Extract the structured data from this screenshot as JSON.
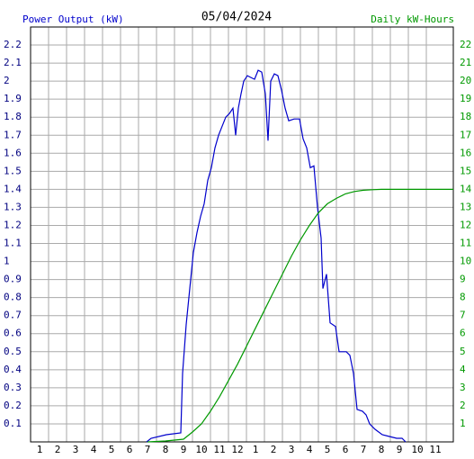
{
  "chart_data": {
    "type": "line",
    "title": "05/04/2024",
    "y_label": "Power Output (kW)",
    "y2_label": "Daily kW-Hours",
    "xlim": [
      0.5,
      24
    ],
    "ylim": [
      0,
      2.3
    ],
    "y2lim": [
      0,
      23
    ],
    "xticks": [
      {
        "value": 1,
        "label": "1"
      },
      {
        "value": 2,
        "label": "2"
      },
      {
        "value": 3,
        "label": "3"
      },
      {
        "value": 4,
        "label": "4"
      },
      {
        "value": 5,
        "label": "5"
      },
      {
        "value": 6,
        "label": "6"
      },
      {
        "value": 7,
        "label": "7"
      },
      {
        "value": 8,
        "label": "8"
      },
      {
        "value": 9,
        "label": "9"
      },
      {
        "value": 10,
        "label": "10"
      },
      {
        "value": 11,
        "label": "11"
      },
      12,
      {
        "value": 13,
        "label": "1"
      },
      {
        "value": 14,
        "label": "2"
      },
      {
        "value": 15,
        "label": "3"
      },
      {
        "value": 16,
        "label": "4"
      },
      {
        "value": 17,
        "label": "5"
      },
      {
        "value": 18,
        "label": "6"
      },
      {
        "value": 19,
        "label": "7"
      },
      {
        "value": 20,
        "label": "8"
      },
      {
        "value": 21,
        "label": "9"
      },
      {
        "value": 22,
        "label": "10"
      },
      {
        "value": 23,
        "label": "11"
      }
    ],
    "yticks": [
      0.1,
      0.2,
      0.3,
      0.4,
      0.5,
      0.6,
      0.7,
      0.8,
      0.9,
      1.0,
      1.1,
      1.2,
      1.3,
      1.4,
      1.5,
      1.6,
      1.7,
      1.8,
      1.9,
      2.0,
      2.1,
      2.2
    ],
    "y2ticks": [
      1,
      2,
      3,
      4,
      5,
      6,
      7,
      8,
      9,
      10,
      11,
      12,
      13,
      14,
      15,
      16,
      17,
      18,
      19,
      20,
      21,
      22
    ],
    "grid": true,
    "series": [
      {
        "name": "Power Output (kW)",
        "color": "#0000cc",
        "x": [
          6.95,
          7.2,
          8.05,
          8.85,
          8.95,
          9.15,
          9.35,
          9.55,
          9.75,
          9.95,
          10.15,
          10.35,
          10.55,
          10.75,
          10.95,
          11.15,
          11.35,
          11.55,
          11.75,
          11.9,
          12.05,
          12.2,
          12.35,
          12.55,
          12.75,
          12.95,
          13.15,
          13.35,
          13.55,
          13.7,
          13.85,
          14.05,
          14.25,
          14.45,
          14.65,
          14.85,
          15.15,
          15.45,
          15.65,
          15.85,
          16.05,
          16.25,
          16.45,
          16.65,
          16.75,
          16.95,
          17.15,
          17.45,
          17.65,
          18.05,
          18.25,
          18.45,
          18.65,
          18.95,
          19.15,
          19.35,
          19.65,
          20.05,
          20.45,
          20.85,
          21.15,
          21.35
        ],
        "values": [
          0,
          0.02,
          0.04,
          0.05,
          0.38,
          0.65,
          0.85,
          1.05,
          1.16,
          1.25,
          1.32,
          1.45,
          1.52,
          1.63,
          1.7,
          1.75,
          1.8,
          1.82,
          1.85,
          1.7,
          1.85,
          1.93,
          2.0,
          2.03,
          2.02,
          2.01,
          2.06,
          2.05,
          1.93,
          1.67,
          2.0,
          2.04,
          2.03,
          1.95,
          1.85,
          1.78,
          1.79,
          1.79,
          1.68,
          1.63,
          1.52,
          1.53,
          1.3,
          1.13,
          0.85,
          0.93,
          0.66,
          0.64,
          0.5,
          0.5,
          0.48,
          0.38,
          0.18,
          0.17,
          0.15,
          0.1,
          0.07,
          0.04,
          0.03,
          0.02,
          0.02,
          0
        ]
      },
      {
        "name": "Daily kW-Hours",
        "color": "#009900",
        "axis": "y2",
        "x": [
          7.0,
          8.0,
          9.0,
          9.5,
          10.0,
          10.5,
          11.0,
          11.5,
          12.0,
          12.5,
          13.0,
          13.5,
          14.0,
          14.5,
          15.0,
          15.5,
          16.0,
          16.5,
          17.0,
          17.5,
          18.0,
          18.5,
          19.0,
          19.5,
          20.0,
          24.0
        ],
        "values": [
          0,
          0.05,
          0.15,
          0.55,
          1.0,
          1.7,
          2.5,
          3.4,
          4.3,
          5.3,
          6.3,
          7.3,
          8.3,
          9.3,
          10.3,
          11.2,
          12.0,
          12.7,
          13.2,
          13.5,
          13.75,
          13.88,
          13.95,
          13.98,
          14.0,
          14.0
        ]
      }
    ]
  }
}
